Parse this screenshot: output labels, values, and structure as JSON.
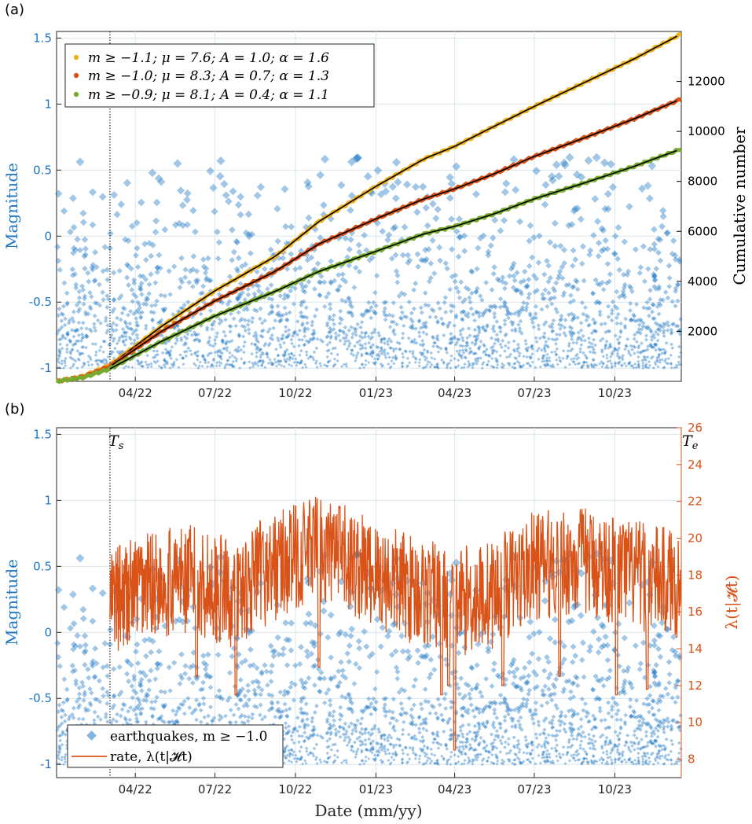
{
  "colors": {
    "eq": "#1f77c4",
    "rate": "#d95319",
    "yellow": "#edb120",
    "red": "#d95319",
    "green": "#77ac30",
    "fit": "#000000",
    "grid": "#d9e6ec"
  },
  "x_ticks": [
    "04/22",
    "07/22",
    "10/22",
    "01/23",
    "04/23",
    "07/23",
    "10/23"
  ],
  "x_tick_days": [
    90,
    181,
    273,
    365,
    455,
    546,
    638
  ],
  "x_range_days": [
    0,
    714
  ],
  "ts_day": 61,
  "chart_data": [
    {
      "type": "scatter",
      "panel_label": "(a)",
      "ylabel_left": "Magnitude",
      "ylabel_right": "Cumulative number",
      "left_ticks": [
        "1.5",
        "1",
        "0.5",
        "0",
        "-0.5",
        "-1"
      ],
      "left_tick_values": [
        1.5,
        1,
        0.5,
        0,
        -0.5,
        -1
      ],
      "ylim_left": [
        -1.1,
        1.55
      ],
      "right_ticks": [
        "2000",
        "4000",
        "6000",
        "8000",
        "10000",
        "12000"
      ],
      "right_tick_values": [
        2000,
        4000,
        6000,
        8000,
        10000,
        12000
      ],
      "ylim_right": [
        0,
        14000
      ],
      "legend": [
        "m ≥ −1.1; μ = 7.6; A = 1.0; α = 1.6",
        "m ≥ −1.0; μ = 8.3; A = 0.7; α = 1.3",
        "m ≥ −0.9; μ = 8.1; A = 0.4; α = 1.1"
      ],
      "series": [
        {
          "name": "m ≥ −1.1",
          "x": [
            0,
            30,
            61,
            120,
            180,
            250,
            300,
            365,
            420,
            455,
            500,
            546,
            600,
            660,
            714
          ],
          "y": [
            0,
            200,
            650,
            2200,
            3600,
            5000,
            6400,
            7800,
            8900,
            9400,
            10200,
            11000,
            11900,
            12900,
            13900
          ]
        },
        {
          "name": "m ≥ −1.0",
          "x": [
            0,
            30,
            61,
            120,
            180,
            250,
            300,
            365,
            420,
            455,
            500,
            546,
            600,
            660,
            714
          ],
          "y": [
            0,
            180,
            600,
            2000,
            3200,
            4400,
            5500,
            6500,
            7300,
            7700,
            8300,
            9000,
            9700,
            10500,
            11300
          ]
        },
        {
          "name": "m ≥ −0.9",
          "x": [
            0,
            30,
            61,
            120,
            180,
            250,
            300,
            365,
            420,
            455,
            500,
            546,
            600,
            660,
            714
          ],
          "y": [
            0,
            150,
            500,
            1600,
            2600,
            3600,
            4400,
            5200,
            5900,
            6200,
            6700,
            7300,
            7900,
            8600,
            9300
          ]
        }
      ]
    },
    {
      "type": "line",
      "panel_label": "(b)",
      "ylabel_left": "Magnitude",
      "ylabel_right": "λ(t|𝓗t)",
      "xlabel": "Date (mm/yy)",
      "left_ticks": [
        "1.5",
        "1",
        "0.5",
        "0",
        "-0.5",
        "-1"
      ],
      "left_tick_values": [
        1.5,
        1,
        0.5,
        0,
        -0.5,
        -1
      ],
      "ylim_left": [
        -1.1,
        1.55
      ],
      "right_ticks": [
        "8",
        "10",
        "12",
        "14",
        "16",
        "18",
        "20",
        "22",
        "24",
        "26"
      ],
      "right_tick_values": [
        8,
        10,
        12,
        14,
        16,
        18,
        20,
        22,
        24,
        26
      ],
      "ylim_right": [
        7,
        26
      ],
      "ts_label": "T",
      "ts_sub": "s",
      "te_label": "T",
      "te_sub": "e",
      "legend": [
        "earthquakes, m ≥ −1.0",
        "rate, λ(t|𝓗t)"
      ],
      "rate_profile_x": [
        61,
        100,
        150,
        200,
        250,
        300,
        365,
        420,
        455,
        500,
        546,
        600,
        660,
        714
      ],
      "rate_profile_y": [
        16.5,
        17.5,
        17.8,
        17,
        18.5,
        19.5,
        18,
        17,
        16.5,
        17,
        18.5,
        18.8,
        18,
        17.5
      ],
      "rate_dips_x": [
        160,
        205,
        300,
        440,
        448,
        455,
        510,
        575,
        640,
        675
      ],
      "rate_dips_y": [
        12.5,
        11.5,
        13,
        11.5,
        12,
        8.5,
        12,
        12.5,
        11.5,
        11.8
      ]
    }
  ]
}
